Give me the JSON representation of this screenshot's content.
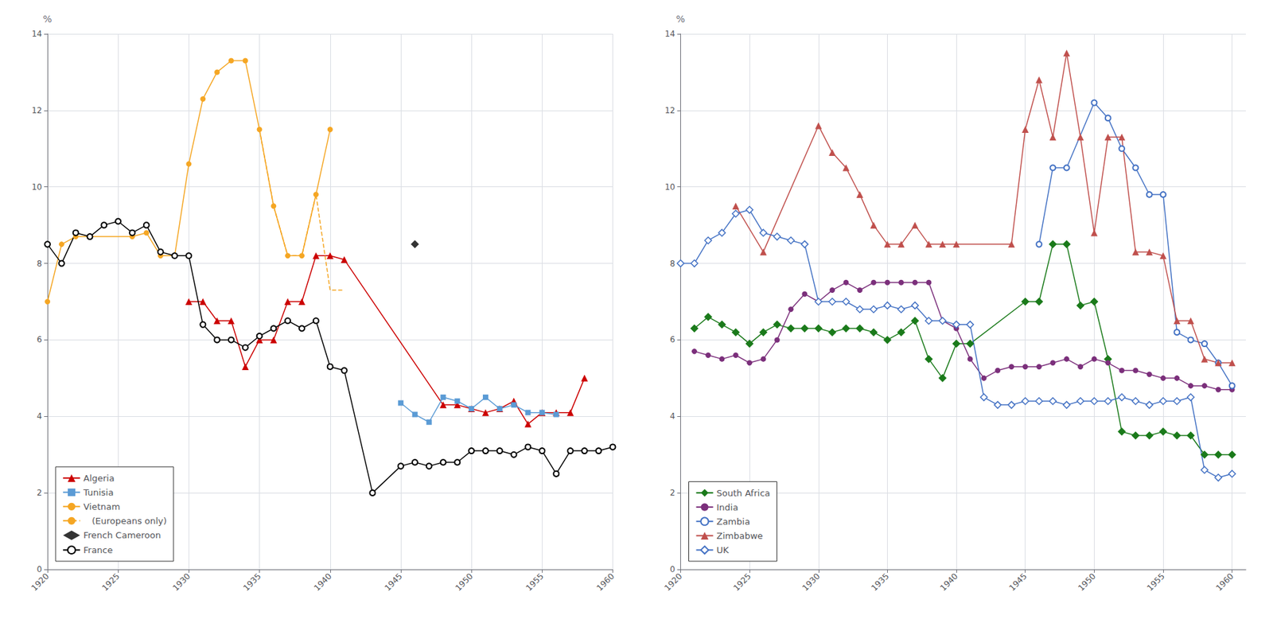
{
  "chart_data": [
    {
      "type": "line",
      "ylabel": "%",
      "xlim": [
        1920,
        1960
      ],
      "ylim": [
        0,
        14
      ],
      "xticks": [
        1920,
        1925,
        1930,
        1935,
        1940,
        1945,
        1950,
        1955,
        1960
      ],
      "yticks": [
        0,
        2,
        4,
        6,
        8,
        10,
        12,
        14
      ],
      "grid": true,
      "legend": "lower left",
      "series": [
        {
          "name": "Algeria",
          "type": "line",
          "color": "#cc0000",
          "marker": "triangle",
          "line_style": "solid",
          "x": [
            1930,
            1931,
            1932,
            1933,
            1934,
            1935,
            1936,
            1937,
            1938,
            1939,
            1940,
            1941,
            1948,
            1949,
            1950,
            1951,
            1952,
            1953,
            1954,
            1955,
            1956,
            1957,
            1958
          ],
          "values": [
            7.0,
            7.0,
            6.5,
            6.5,
            5.3,
            6.0,
            6.0,
            7.0,
            7.0,
            8.2,
            8.2,
            8.1,
            4.3,
            4.3,
            4.2,
            4.1,
            4.2,
            4.4,
            3.8,
            4.1,
            4.1,
            4.1,
            5.0
          ]
        },
        {
          "name": "Tunisia",
          "type": "line",
          "color": "#5b9bd5",
          "marker": "square",
          "line_style": "solid",
          "x": [
            1945,
            1946,
            1947,
            1948,
            1949,
            1950,
            1951,
            1952,
            1953,
            1954,
            1955,
            1956
          ],
          "values": [
            4.35,
            4.05,
            3.85,
            4.5,
            4.4,
            4.2,
            4.5,
            4.2,
            4.3,
            4.1,
            4.1,
            4.05
          ]
        },
        {
          "name": "Vietnam",
          "type": "line",
          "color": "#f5a623",
          "marker": "circle",
          "line_style": "solid",
          "x": [
            1920,
            1921,
            1922,
            1926,
            1927,
            1928,
            1929,
            1930,
            1931,
            1932,
            1933,
            1934,
            1935,
            1936,
            1937,
            1938,
            1939,
            1940
          ],
          "values": [
            7.0,
            8.5,
            8.7,
            8.7,
            8.8,
            8.2,
            8.2,
            10.6,
            12.3,
            13.0,
            13.3,
            13.3,
            11.5,
            9.5,
            8.2,
            8.2,
            9.8,
            11.5
          ]
        },
        {
          "name": "   (Europeans only)",
          "type": "line",
          "color": "#f5a623",
          "marker": "none",
          "line_style": "dashed",
          "x": [
            1935,
            1936,
            1937,
            1938,
            1939,
            1940,
            1941
          ],
          "values": [
            11.5,
            9.5,
            8.2,
            8.2,
            9.8,
            7.3,
            7.3
          ]
        },
        {
          "name": "French Cameroon",
          "type": "scatter",
          "color": "#000000",
          "marker": "diamond",
          "line_style": "none",
          "x": [
            1946
          ],
          "values": [
            8.5
          ]
        },
        {
          "name": "France",
          "type": "line",
          "color": "#000000",
          "marker": "open_circle",
          "line_style": "solid",
          "x": [
            1920,
            1921,
            1922,
            1923,
            1924,
            1925,
            1926,
            1927,
            1928,
            1929,
            1930,
            1931,
            1932,
            1933,
            1934,
            1935,
            1936,
            1937,
            1938,
            1939,
            1940,
            1941,
            1943,
            1945,
            1946,
            1947,
            1948,
            1949,
            1950,
            1951,
            1952,
            1953,
            1954,
            1955,
            1956,
            1957,
            1958,
            1959,
            1960
          ],
          "values": [
            8.5,
            8.0,
            8.8,
            8.7,
            9.0,
            9.1,
            8.8,
            9.0,
            8.3,
            8.2,
            8.2,
            6.4,
            6.0,
            6.0,
            5.8,
            6.1,
            6.3,
            6.5,
            6.3,
            6.5,
            5.3,
            5.2,
            2.0,
            2.7,
            2.8,
            2.7,
            2.8,
            2.8,
            3.1,
            3.1,
            3.1,
            3.0,
            3.2,
            3.1,
            2.5,
            3.1,
            3.1,
            3.1,
            3.2
          ]
        }
      ]
    },
    {
      "type": "line",
      "ylabel": "%",
      "xlim": [
        1920,
        1961
      ],
      "ylim": [
        0,
        14
      ],
      "xticks": [
        1920,
        1925,
        1930,
        1935,
        1940,
        1945,
        1950,
        1955,
        1960
      ],
      "yticks": [
        0,
        2,
        4,
        6,
        8,
        10,
        12,
        14
      ],
      "grid": true,
      "legend": "lower left",
      "series": [
        {
          "name": "South Africa",
          "type": "line",
          "color": "#1a7a1a",
          "marker": "diamond",
          "line_style": "solid",
          "x": [
            1921,
            1922,
            1923,
            1924,
            1925,
            1926,
            1927,
            1928,
            1929,
            1930,
            1931,
            1932,
            1933,
            1934,
            1935,
            1936,
            1937,
            1938,
            1939,
            1940,
            1941,
            1945,
            1946,
            1947,
            1948,
            1949,
            1950,
            1951,
            1952,
            1953,
            1954,
            1955,
            1956,
            1957,
            1958,
            1959,
            1960
          ],
          "values": [
            6.3,
            6.6,
            6.4,
            6.2,
            5.9,
            6.2,
            6.4,
            6.3,
            6.3,
            6.3,
            6.2,
            6.3,
            6.3,
            6.2,
            6.0,
            6.2,
            6.5,
            5.5,
            5.0,
            5.9,
            5.9,
            7.0,
            7.0,
            8.5,
            8.5,
            6.9,
            7.0,
            5.5,
            3.6,
            3.5,
            3.5,
            3.6,
            3.5,
            3.5,
            3.0,
            3.0,
            3.0
          ]
        },
        {
          "name": "India",
          "type": "line",
          "color": "#7b2f7b",
          "marker": "circle",
          "line_style": "solid",
          "x": [
            1921,
            1922,
            1923,
            1924,
            1925,
            1926,
            1927,
            1928,
            1929,
            1930,
            1931,
            1932,
            1933,
            1934,
            1935,
            1936,
            1937,
            1938,
            1939,
            1940,
            1941,
            1942,
            1943,
            1944,
            1945,
            1946,
            1947,
            1948,
            1949,
            1950,
            1951,
            1952,
            1953,
            1954,
            1955,
            1956,
            1957,
            1958,
            1959,
            1960
          ],
          "values": [
            5.7,
            5.6,
            5.5,
            5.6,
            5.4,
            5.5,
            6.0,
            6.8,
            7.2,
            7.0,
            7.3,
            7.5,
            7.3,
            7.5,
            7.5,
            7.5,
            7.5,
            7.5,
            6.5,
            6.3,
            5.5,
            5.0,
            5.2,
            5.3,
            5.3,
            5.3,
            5.4,
            5.5,
            5.3,
            5.5,
            5.4,
            5.2,
            5.2,
            5.1,
            5.0,
            5.0,
            4.8,
            4.8,
            4.7,
            4.7
          ]
        },
        {
          "name": "Zambia",
          "type": "line",
          "color": "#4472c4",
          "marker": "open_circle",
          "line_style": "solid",
          "x": [
            1946,
            1947,
            1948,
            1950,
            1951,
            1952,
            1953,
            1954,
            1955,
            1956,
            1957,
            1958,
            1959,
            1960
          ],
          "values": [
            8.5,
            10.5,
            10.5,
            12.2,
            11.8,
            11.0,
            10.5,
            9.8,
            9.8,
            6.2,
            6.0,
            5.9,
            5.4,
            4.8
          ]
        },
        {
          "name": "Zimbabwe",
          "type": "line",
          "color": "#c0504d",
          "marker": "triangle",
          "line_style": "solid",
          "x": [
            1924,
            1926,
            1930,
            1931,
            1932,
            1933,
            1934,
            1935,
            1936,
            1937,
            1938,
            1939,
            1940,
            1944,
            1945,
            1946,
            1947,
            1948,
            1949,
            1950,
            1951,
            1952,
            1953,
            1954,
            1955,
            1956,
            1957,
            1958,
            1959,
            1960
          ],
          "values": [
            9.5,
            8.3,
            11.6,
            10.9,
            10.5,
            9.8,
            9.0,
            8.5,
            8.5,
            9.0,
            8.5,
            8.5,
            8.5,
            8.5,
            11.5,
            12.8,
            11.3,
            13.5,
            11.3,
            8.8,
            11.3,
            11.3,
            8.3,
            8.3,
            8.2,
            6.5,
            6.5,
            5.5,
            5.4,
            5.4
          ]
        },
        {
          "name": "UK",
          "type": "line",
          "color": "#4472c4",
          "marker": "open_diamond",
          "line_style": "solid",
          "x": [
            1920,
            1921,
            1922,
            1923,
            1924,
            1925,
            1926,
            1927,
            1928,
            1929,
            1930,
            1931,
            1932,
            1933,
            1934,
            1935,
            1936,
            1937,
            1938,
            1939,
            1940,
            1941,
            1942,
            1943,
            1944,
            1945,
            1946,
            1947,
            1948,
            1949,
            1950,
            1951,
            1952,
            1953,
            1954,
            1955,
            1956,
            1957,
            1958,
            1959,
            1960
          ],
          "values": [
            8.0,
            8.0,
            8.6,
            8.8,
            9.3,
            9.4,
            8.8,
            8.7,
            8.6,
            8.5,
            7.0,
            7.0,
            7.0,
            6.8,
            6.8,
            6.9,
            6.8,
            6.9,
            6.5,
            6.5,
            6.4,
            6.4,
            4.5,
            4.3,
            4.3,
            4.4,
            4.4,
            4.4,
            4.3,
            4.4,
            4.4,
            4.4,
            4.5,
            4.4,
            4.3,
            4.4,
            4.4,
            4.5,
            2.6,
            2.4,
            2.5
          ]
        }
      ]
    }
  ]
}
